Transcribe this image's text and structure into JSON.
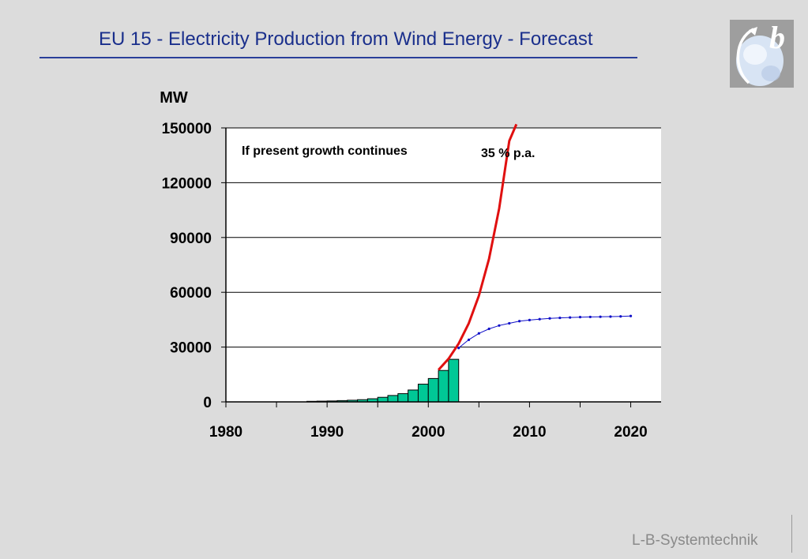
{
  "slide": {
    "title": "EU 15 - Electricity Production from Wind Energy - Forecast",
    "footer": "L-B-Systemtechnik",
    "logo_letter": "b"
  },
  "colors": {
    "title": "#1a2f8c",
    "bars": "#00c896",
    "growth_line": "#e01010",
    "forecast_line": "#1010c8",
    "plot_bg": "#ffffff",
    "footer": "#8a8a8a"
  },
  "chart_data": {
    "type": "bar",
    "ylabel": "MW",
    "ylim": [
      0,
      150000
    ],
    "yticks": [
      0,
      30000,
      60000,
      90000,
      120000,
      150000
    ],
    "xlim": [
      1980,
      2023
    ],
    "xticks": [
      1980,
      1990,
      2000,
      2010,
      2020
    ],
    "grid": true,
    "annotations": [
      "If present growth continues",
      "35 % p.a."
    ],
    "bars": {
      "x": [
        1988,
        1989,
        1990,
        1991,
        1992,
        1993,
        1994,
        1995,
        1996,
        1997,
        1998,
        1999,
        2000,
        2001,
        2002
      ],
      "values": [
        300,
        400,
        500,
        700,
        900,
        1200,
        1700,
        2500,
        3500,
        4500,
        6500,
        9700,
        12800,
        17200,
        23300
      ]
    },
    "series": [
      {
        "x": [
          2001,
          2002,
          2003,
          2004,
          2005,
          2006,
          2007,
          2008,
          2008.7
        ],
        "values": [
          17500,
          23600,
          31900,
          43000,
          58100,
          78400,
          105900,
          142900,
          152000
        ]
      },
      {
        "x": [
          2003,
          2004,
          2005,
          2006,
          2007,
          2008,
          2009,
          2010,
          2011,
          2012,
          2013,
          2014,
          2015,
          2016,
          2017,
          2018,
          2019,
          2020
        ],
        "values": [
          29500,
          34000,
          37500,
          40000,
          41800,
          43000,
          44200,
          44800,
          45300,
          45700,
          46000,
          46200,
          46400,
          46500,
          46600,
          46700,
          46800,
          47000
        ]
      }
    ]
  }
}
